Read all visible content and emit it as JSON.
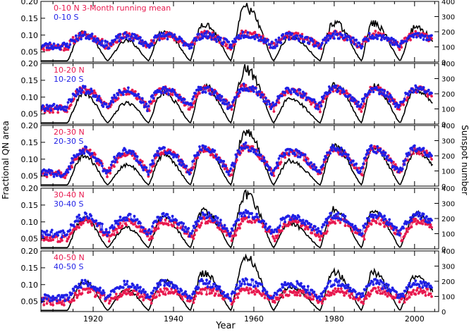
{
  "figure": {
    "xlabel": "Year",
    "ylabel_left": "Fractional QN area",
    "ylabel_right": "Sunspot number"
  },
  "colors": {
    "north": "#e8194f",
    "south": "#1f1fe6",
    "sunspot": "#000000",
    "axis": "#000000"
  },
  "chart_data": {
    "type": "line",
    "xlim": [
      1907,
      2006
    ],
    "x_ticks": [
      1920,
      1940,
      1960,
      1980,
      2000
    ],
    "y_left_lim": [
      0.02,
      0.2
    ],
    "y_left_ticks": [
      0.05,
      0.1,
      0.15,
      0.2
    ],
    "y_left_tick_labels": [
      "0.05",
      "0.10",
      "0.15",
      "0.20"
    ],
    "y_right_lim": [
      0,
      400
    ],
    "y_right_ticks": [
      0,
      100,
      200,
      300,
      400
    ],
    "sunspot_cycles": {
      "min_years": [
        1913.6,
        1923.6,
        1933.8,
        1944.2,
        1954.3,
        1964.9,
        1976.5,
        1986.8,
        1996.4,
        2008.0
      ],
      "max_years": [
        1917.6,
        1928.4,
        1937.4,
        1947.4,
        1957.9,
        1968.9,
        1979.9,
        1989.6,
        2000.3
      ],
      "max_values": [
        200,
        140,
        205,
        255,
        360,
        165,
        260,
        255,
        230
      ],
      "min_value": 8
    },
    "panels": [
      {
        "labels": [
          {
            "text": "0-10 N 3-Month running mean",
            "series": "north"
          },
          {
            "text": "0-10 S",
            "series": "south"
          }
        ],
        "north": {
          "base": 0.065,
          "amp": 0.04,
          "phase": 0.0
        },
        "south": {
          "base": 0.068,
          "amp": 0.035,
          "phase": 0.0
        }
      },
      {
        "labels": [
          {
            "text": "10-20 N",
            "series": "north"
          },
          {
            "text": "10-20 S",
            "series": "south"
          }
        ],
        "north": {
          "base": 0.065,
          "amp": 0.065,
          "phase": 0.0
        },
        "south": {
          "base": 0.07,
          "amp": 0.06,
          "phase": -0.03
        }
      },
      {
        "labels": [
          {
            "text": "20-30 N",
            "series": "north"
          },
          {
            "text": "20-30 S",
            "series": "south"
          }
        ],
        "north": {
          "base": 0.055,
          "amp": 0.08,
          "phase": 0.0
        },
        "south": {
          "base": 0.058,
          "amp": 0.08,
          "phase": -0.02
        }
      },
      {
        "labels": [
          {
            "text": "30-40 N",
            "series": "north"
          },
          {
            "text": "30-40 S",
            "series": "south"
          }
        ],
        "north": {
          "base": 0.05,
          "amp": 0.06,
          "phase": 0.05
        },
        "south": {
          "base": 0.065,
          "amp": 0.06,
          "phase": 0.0
        }
      },
      {
        "labels": [
          {
            "text": "40-50 N",
            "series": "north"
          },
          {
            "text": "40-50 S",
            "series": "south"
          }
        ],
        "north": {
          "base": 0.05,
          "amp": 0.035,
          "phase": 0.05
        },
        "south": {
          "base": 0.06,
          "amp": 0.05,
          "phase": 0.0
        }
      }
    ]
  }
}
